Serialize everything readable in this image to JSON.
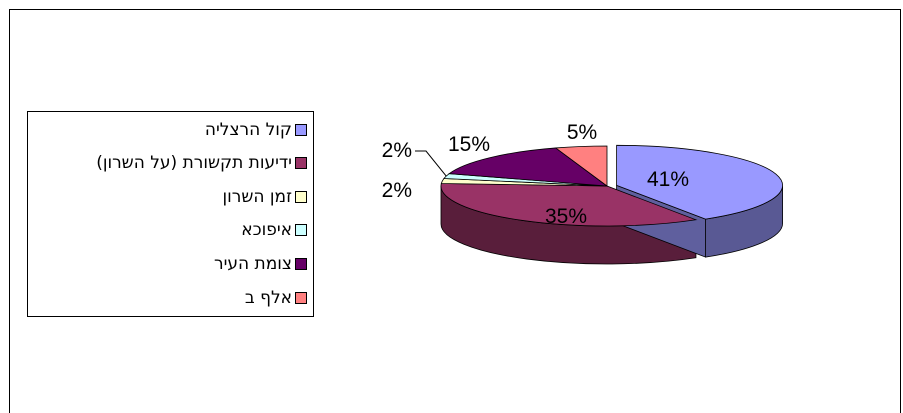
{
  "chart_data": {
    "type": "pie",
    "title": "",
    "three_d": true,
    "legend_position": "left",
    "categories": [
      "קול הרצליה",
      "ידיעות תקשורת (על השרון)",
      "זמן השרון",
      "איפוכא",
      "צומת העיר",
      "אלף ב"
    ],
    "values": [
      41,
      35,
      2,
      2,
      15,
      5
    ],
    "data_labels": [
      "41%",
      "35%",
      "2%",
      "2%",
      "15%",
      "5%"
    ],
    "colors": [
      "#9999FF",
      "#993366",
      "#FFFFCC",
      "#CCFFFF",
      "#660066",
      "#FF8080"
    ]
  }
}
